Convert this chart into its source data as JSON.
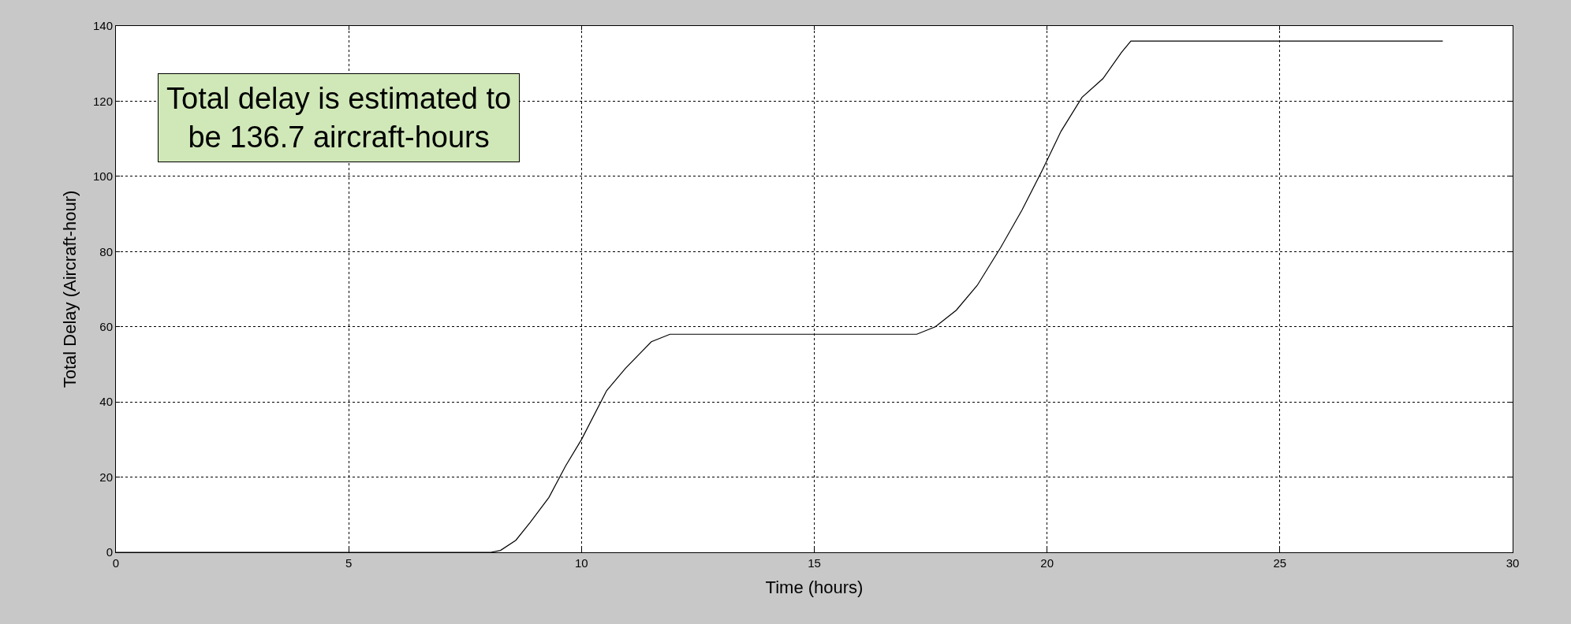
{
  "chart_data": {
    "type": "line",
    "xlabel": "Time (hours)",
    "ylabel": "Total Delay (Aircraft-hour)",
    "annotations": [
      "Total delay is estimated to\nbe 136.7 aircraft-hours"
    ],
    "x": [
      0,
      8.05,
      8.26,
      8.59,
      8.9,
      9.3,
      9.66,
      10.0,
      10.54,
      10.95,
      11.5,
      11.9,
      17.2,
      17.6,
      18.05,
      18.5,
      19.0,
      19.46,
      19.9,
      20.3,
      20.75,
      21.2,
      21.6,
      21.8,
      28.5
    ],
    "series": [
      {
        "color": "#000000",
        "values": [
          0,
          0,
          0.5,
          3.2,
          8,
          14.6,
          23,
          30,
          43,
          49,
          56,
          58,
          58,
          60,
          64.4,
          71,
          81,
          91,
          101.7,
          112,
          121,
          126,
          133,
          136,
          136
        ]
      }
    ],
    "xlim": [
      0,
      30
    ],
    "xticks": [
      0,
      5,
      10,
      15,
      20,
      25,
      30
    ],
    "ylim": [
      0,
      140
    ],
    "yticks": [
      0,
      20,
      40,
      60,
      80,
      100,
      120,
      140
    ],
    "grid": true,
    "legend": false,
    "marker": "none",
    "line_style": "solid"
  }
}
